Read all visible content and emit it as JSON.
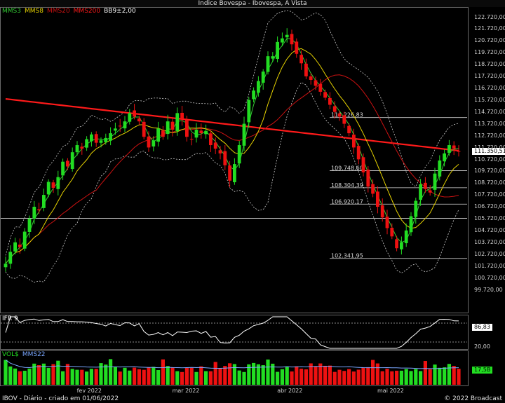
{
  "window": {
    "title": "Indice Bovespa - Ibovespa, A Vista"
  },
  "legend": {
    "mms3": "MMS3",
    "mms8": "MMS8",
    "mms20": "MMS20",
    "mms200": "MMS200",
    "bb": "BB9±2,00"
  },
  "ifr_panel": {
    "label": "IFR 9",
    "current_value": "86,83",
    "ticks": [
      "20,00"
    ]
  },
  "vol_panel": {
    "label1": "VOL$",
    "label2": "MMS22",
    "current_value": "17,5B"
  },
  "price_panel": {
    "current_price_label": "111.350,51",
    "levels": [
      {
        "label": "114.226,83",
        "value": 114226.83
      },
      {
        "label": "109.748,60",
        "value": 109748.6
      },
      {
        "label": "108.304,39",
        "value": 108304.39
      },
      {
        "label": "106.920,17",
        "value": 106920.17
      },
      {
        "label": "102.341,95",
        "value": 102341.95
      }
    ],
    "extra_line": 105720
  },
  "footer": {
    "left": "IBOV - Diário - criado em 01/06/2022",
    "right": "© 2022 Broadcast"
  },
  "colors": {
    "up": "#22dd22",
    "down": "#ee1111",
    "mms3": "#33cc33",
    "mms8": "#e6d200",
    "mms20": "#cc1111",
    "mms200": "#ff1a1a",
    "bb": "#cccccc"
  },
  "chart_data": {
    "type": "candlestick",
    "ylim": [
      98720,
      122720
    ],
    "y_ticks": [
      "122.720,00",
      "121.720,00",
      "120.720,00",
      "119.720,00",
      "118.720,00",
      "117.720,00",
      "116.720,00",
      "115.720,00",
      "114.720,00",
      "113.720,00",
      "112.720,00",
      "111.720,00",
      "110.720,00",
      "109.720,00",
      "108.720,00",
      "107.720,00",
      "106.720,00",
      "105.720,00",
      "104.720,00",
      "103.720,00",
      "102.720,00",
      "101.720,00",
      "100.720,00",
      "99.720,00"
    ],
    "x_ticks": [
      {
        "label": "fev 2022",
        "index": 17
      },
      {
        "label": "mar 2022",
        "index": 37
      },
      {
        "label": "abr 2022",
        "index": 59
      },
      {
        "label": "mai 2022",
        "index": 80
      }
    ],
    "closes": [
      101900,
      102900,
      103700,
      103300,
      104600,
      105700,
      106700,
      106400,
      107700,
      108800,
      108300,
      109200,
      110500,
      110100,
      111300,
      111900,
      111600,
      112400,
      112800,
      112100,
      112300,
      112500,
      112900,
      113300,
      113500,
      113900,
      114600,
      114300,
      113900,
      112600,
      111700,
      112300,
      113300,
      112600,
      113900,
      113200,
      114600,
      114100,
      112600,
      112400,
      113200,
      112900,
      113100,
      111900,
      111600,
      111200,
      110200,
      108900,
      110300,
      111900,
      113700,
      115700,
      116500,
      117300,
      118100,
      119400,
      119400,
      120600,
      120900,
      121200,
      120400,
      119600,
      118800,
      117700,
      117400,
      116900,
      116400,
      115900,
      115300,
      114700,
      114300,
      113700,
      112900,
      111700,
      110700,
      109600,
      108400,
      107800,
      106700,
      105800,
      104900,
      104200,
      103200,
      103700,
      104700,
      105900,
      107200,
      108600,
      108200,
      107900,
      109500,
      110600,
      111200,
      111900,
      111600,
      111350
    ],
    "ifr_last": 86.83,
    "volume_last": "17,5B"
  }
}
